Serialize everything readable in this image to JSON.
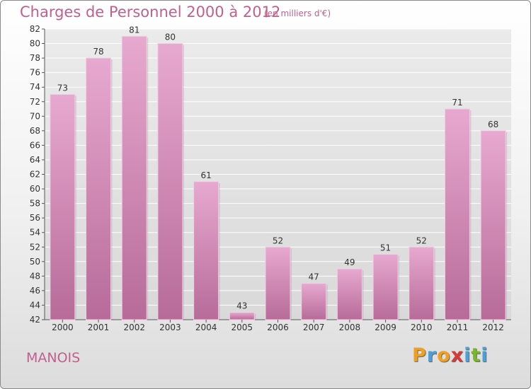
{
  "chart_data": {
    "type": "bar",
    "title": "Charges de Personnel 2000 à 2012",
    "subtitle": "(en milliers d'€)",
    "categories": [
      "2000",
      "2001",
      "2002",
      "2003",
      "2004",
      "2005",
      "2006",
      "2007",
      "2008",
      "2009",
      "2010",
      "2011",
      "2012"
    ],
    "values": [
      73,
      78,
      81,
      80,
      61,
      43,
      52,
      47,
      49,
      51,
      52,
      71,
      68
    ],
    "ylim": [
      42,
      82
    ],
    "yticks": [
      42,
      44,
      46,
      48,
      50,
      52,
      54,
      56,
      58,
      60,
      62,
      64,
      66,
      68,
      70,
      72,
      74,
      76,
      78,
      80,
      82
    ],
    "grid": true,
    "bar_color": "#d98bb8"
  },
  "footer": {
    "commune": "MANOIS"
  },
  "logo": {
    "text": "Proxiti",
    "letters": [
      {
        "ch": "P",
        "color": "#f0a020"
      },
      {
        "ch": "r",
        "color": "#4aa0d8"
      },
      {
        "ch": "o",
        "color": "#f0a020"
      },
      {
        "ch": "x",
        "color": "#d83838"
      },
      {
        "ch": "i",
        "color": "#4aa0d8"
      },
      {
        "ch": "t",
        "color": "#78b828"
      },
      {
        "ch": "i",
        "color": "#4aa0d8"
      }
    ]
  }
}
